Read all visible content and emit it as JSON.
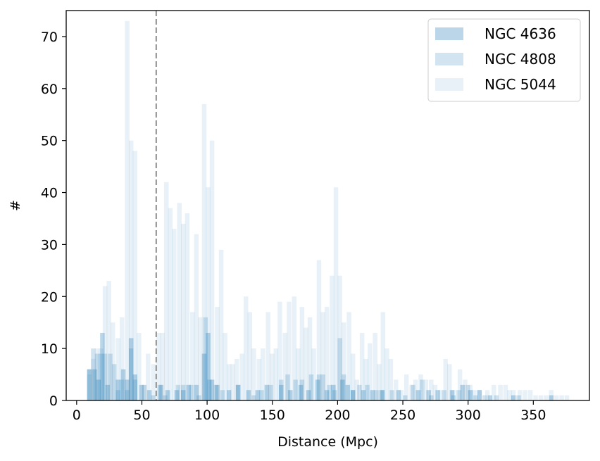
{
  "chart_data": {
    "type": "histogram",
    "xlabel": "Distance (Mpc)",
    "ylabel": "#",
    "xlim": [
      -8,
      393
    ],
    "ylim": [
      0,
      75
    ],
    "xticks": [
      0,
      50,
      100,
      150,
      200,
      250,
      300,
      350
    ],
    "yticks": [
      0,
      10,
      20,
      30,
      40,
      50,
      60,
      70
    ],
    "bin_width": 3.5,
    "vline": {
      "x": 61,
      "style": "dashed",
      "color": "#999999"
    },
    "legend_position": "upper right",
    "series": [
      {
        "name": "NGC 4636",
        "color": "#1f77b4",
        "opacity": 0.3,
        "bins": [
          [
            8,
            6
          ],
          [
            12,
            6
          ],
          [
            15,
            4
          ],
          [
            18,
            13
          ],
          [
            22,
            3
          ],
          [
            30,
            4
          ],
          [
            34,
            6
          ],
          [
            37,
            4
          ],
          [
            40,
            12
          ],
          [
            43,
            5
          ],
          [
            48,
            3
          ],
          [
            54,
            2
          ],
          [
            63,
            3
          ],
          [
            68,
            2
          ],
          [
            75,
            2
          ],
          [
            80,
            2
          ],
          [
            84,
            3
          ],
          [
            90,
            3
          ],
          [
            96,
            9
          ],
          [
            99,
            13
          ],
          [
            102,
            4
          ],
          [
            106,
            3
          ],
          [
            115,
            2
          ],
          [
            122,
            3
          ],
          [
            130,
            2
          ],
          [
            137,
            2
          ],
          [
            144,
            3
          ],
          [
            155,
            3
          ],
          [
            162,
            2
          ],
          [
            170,
            3
          ],
          [
            176,
            2
          ],
          [
            183,
            4
          ],
          [
            190,
            2
          ],
          [
            195,
            3
          ],
          [
            202,
            4
          ],
          [
            206,
            3
          ],
          [
            210,
            2
          ],
          [
            218,
            2
          ],
          [
            225,
            2
          ],
          [
            232,
            2
          ],
          [
            245,
            2
          ],
          [
            260,
            2
          ],
          [
            268,
            2
          ],
          [
            275,
            2
          ],
          [
            286,
            2
          ],
          [
            294,
            3
          ],
          [
            300,
            2
          ],
          [
            307,
            2
          ],
          [
            315,
            1
          ],
          [
            333,
            1
          ],
          [
            362,
            1
          ]
        ]
      },
      {
        "name": "NGC 4808",
        "color": "#1f77b4",
        "opacity": 0.2,
        "bins": [
          [
            8,
            6
          ],
          [
            11,
            10
          ],
          [
            14,
            9
          ],
          [
            17,
            9
          ],
          [
            20,
            9
          ],
          [
            24,
            9
          ],
          [
            27,
            7
          ],
          [
            30,
            2
          ],
          [
            33,
            4
          ],
          [
            37,
            2
          ],
          [
            40,
            10
          ],
          [
            43,
            4
          ],
          [
            50,
            3
          ],
          [
            57,
            1
          ],
          [
            62,
            3
          ],
          [
            66,
            1
          ],
          [
            76,
            3
          ],
          [
            80,
            3
          ],
          [
            86,
            3
          ],
          [
            92,
            1
          ],
          [
            97,
            16
          ],
          [
            100,
            4
          ],
          [
            105,
            3
          ],
          [
            110,
            2
          ],
          [
            122,
            3
          ],
          [
            134,
            1
          ],
          [
            140,
            2
          ],
          [
            147,
            3
          ],
          [
            155,
            4
          ],
          [
            160,
            5
          ],
          [
            166,
            4
          ],
          [
            171,
            4
          ],
          [
            178,
            5
          ],
          [
            184,
            5
          ],
          [
            187,
            5
          ],
          [
            192,
            3
          ],
          [
            196,
            2
          ],
          [
            200,
            12
          ],
          [
            203,
            5
          ],
          [
            210,
            2
          ],
          [
            215,
            3
          ],
          [
            221,
            3
          ],
          [
            228,
            2
          ],
          [
            233,
            2
          ],
          [
            240,
            2
          ],
          [
            250,
            1
          ],
          [
            256,
            3
          ],
          [
            263,
            4
          ],
          [
            270,
            1
          ],
          [
            280,
            2
          ],
          [
            287,
            1
          ],
          [
            291,
            2
          ],
          [
            298,
            3
          ],
          [
            304,
            1
          ],
          [
            311,
            1
          ],
          [
            320,
            1
          ],
          [
            337,
            1
          ]
        ]
      },
      {
        "name": "NGC 5044",
        "color": "#1f77b4",
        "opacity": 0.1,
        "bins": [
          [
            8,
            5
          ],
          [
            11,
            8
          ],
          [
            14,
            10
          ],
          [
            17,
            10
          ],
          [
            20,
            22
          ],
          [
            23,
            23
          ],
          [
            26,
            15
          ],
          [
            30,
            12
          ],
          [
            33,
            16
          ],
          [
            37,
            73
          ],
          [
            40,
            50
          ],
          [
            43,
            48
          ],
          [
            46,
            13
          ],
          [
            50,
            3
          ],
          [
            53,
            9
          ],
          [
            57,
            7
          ],
          [
            61,
            13
          ],
          [
            64,
            13
          ],
          [
            67,
            42
          ],
          [
            70,
            37
          ],
          [
            73,
            33
          ],
          [
            77,
            38
          ],
          [
            80,
            34
          ],
          [
            83,
            36
          ],
          [
            87,
            17
          ],
          [
            90,
            32
          ],
          [
            93,
            16
          ],
          [
            96,
            57
          ],
          [
            99,
            41
          ],
          [
            102,
            50
          ],
          [
            106,
            18
          ],
          [
            109,
            29
          ],
          [
            112,
            13
          ],
          [
            115,
            7
          ],
          [
            118,
            7
          ],
          [
            121,
            8
          ],
          [
            125,
            9
          ],
          [
            128,
            20
          ],
          [
            131,
            17
          ],
          [
            134,
            10
          ],
          [
            138,
            8
          ],
          [
            141,
            10
          ],
          [
            145,
            17
          ],
          [
            148,
            9
          ],
          [
            151,
            10
          ],
          [
            154,
            19
          ],
          [
            158,
            13
          ],
          [
            161,
            19
          ],
          [
            165,
            20
          ],
          [
            168,
            10
          ],
          [
            171,
            18
          ],
          [
            174,
            14
          ],
          [
            177,
            16
          ],
          [
            180,
            10
          ],
          [
            184,
            27
          ],
          [
            187,
            17
          ],
          [
            190,
            18
          ],
          [
            194,
            24
          ],
          [
            197,
            41
          ],
          [
            200,
            24
          ],
          [
            203,
            15
          ],
          [
            207,
            17
          ],
          [
            210,
            9
          ],
          [
            213,
            4
          ],
          [
            217,
            13
          ],
          [
            220,
            8
          ],
          [
            223,
            11
          ],
          [
            227,
            13
          ],
          [
            230,
            7
          ],
          [
            233,
            17
          ],
          [
            236,
            10
          ],
          [
            239,
            8
          ],
          [
            243,
            4
          ],
          [
            247,
            2
          ],
          [
            251,
            5
          ],
          [
            255,
            3
          ],
          [
            258,
            4
          ],
          [
            262,
            5
          ],
          [
            266,
            4
          ],
          [
            270,
            4
          ],
          [
            273,
            3
          ],
          [
            277,
            2
          ],
          [
            281,
            8
          ],
          [
            284,
            7
          ],
          [
            287,
            2
          ],
          [
            292,
            6
          ],
          [
            296,
            4
          ],
          [
            300,
            3
          ],
          [
            303,
            2
          ],
          [
            307,
            2
          ],
          [
            313,
            2
          ],
          [
            318,
            3
          ],
          [
            323,
            3
          ],
          [
            327,
            3
          ],
          [
            330,
            2
          ],
          [
            333,
            2
          ],
          [
            338,
            2
          ],
          [
            342,
            2
          ],
          [
            346,
            2
          ],
          [
            350,
            1
          ],
          [
            354,
            1
          ],
          [
            358,
            1
          ],
          [
            362,
            2
          ],
          [
            366,
            1
          ],
          [
            370,
            1
          ],
          [
            374,
            1
          ]
        ]
      }
    ]
  }
}
